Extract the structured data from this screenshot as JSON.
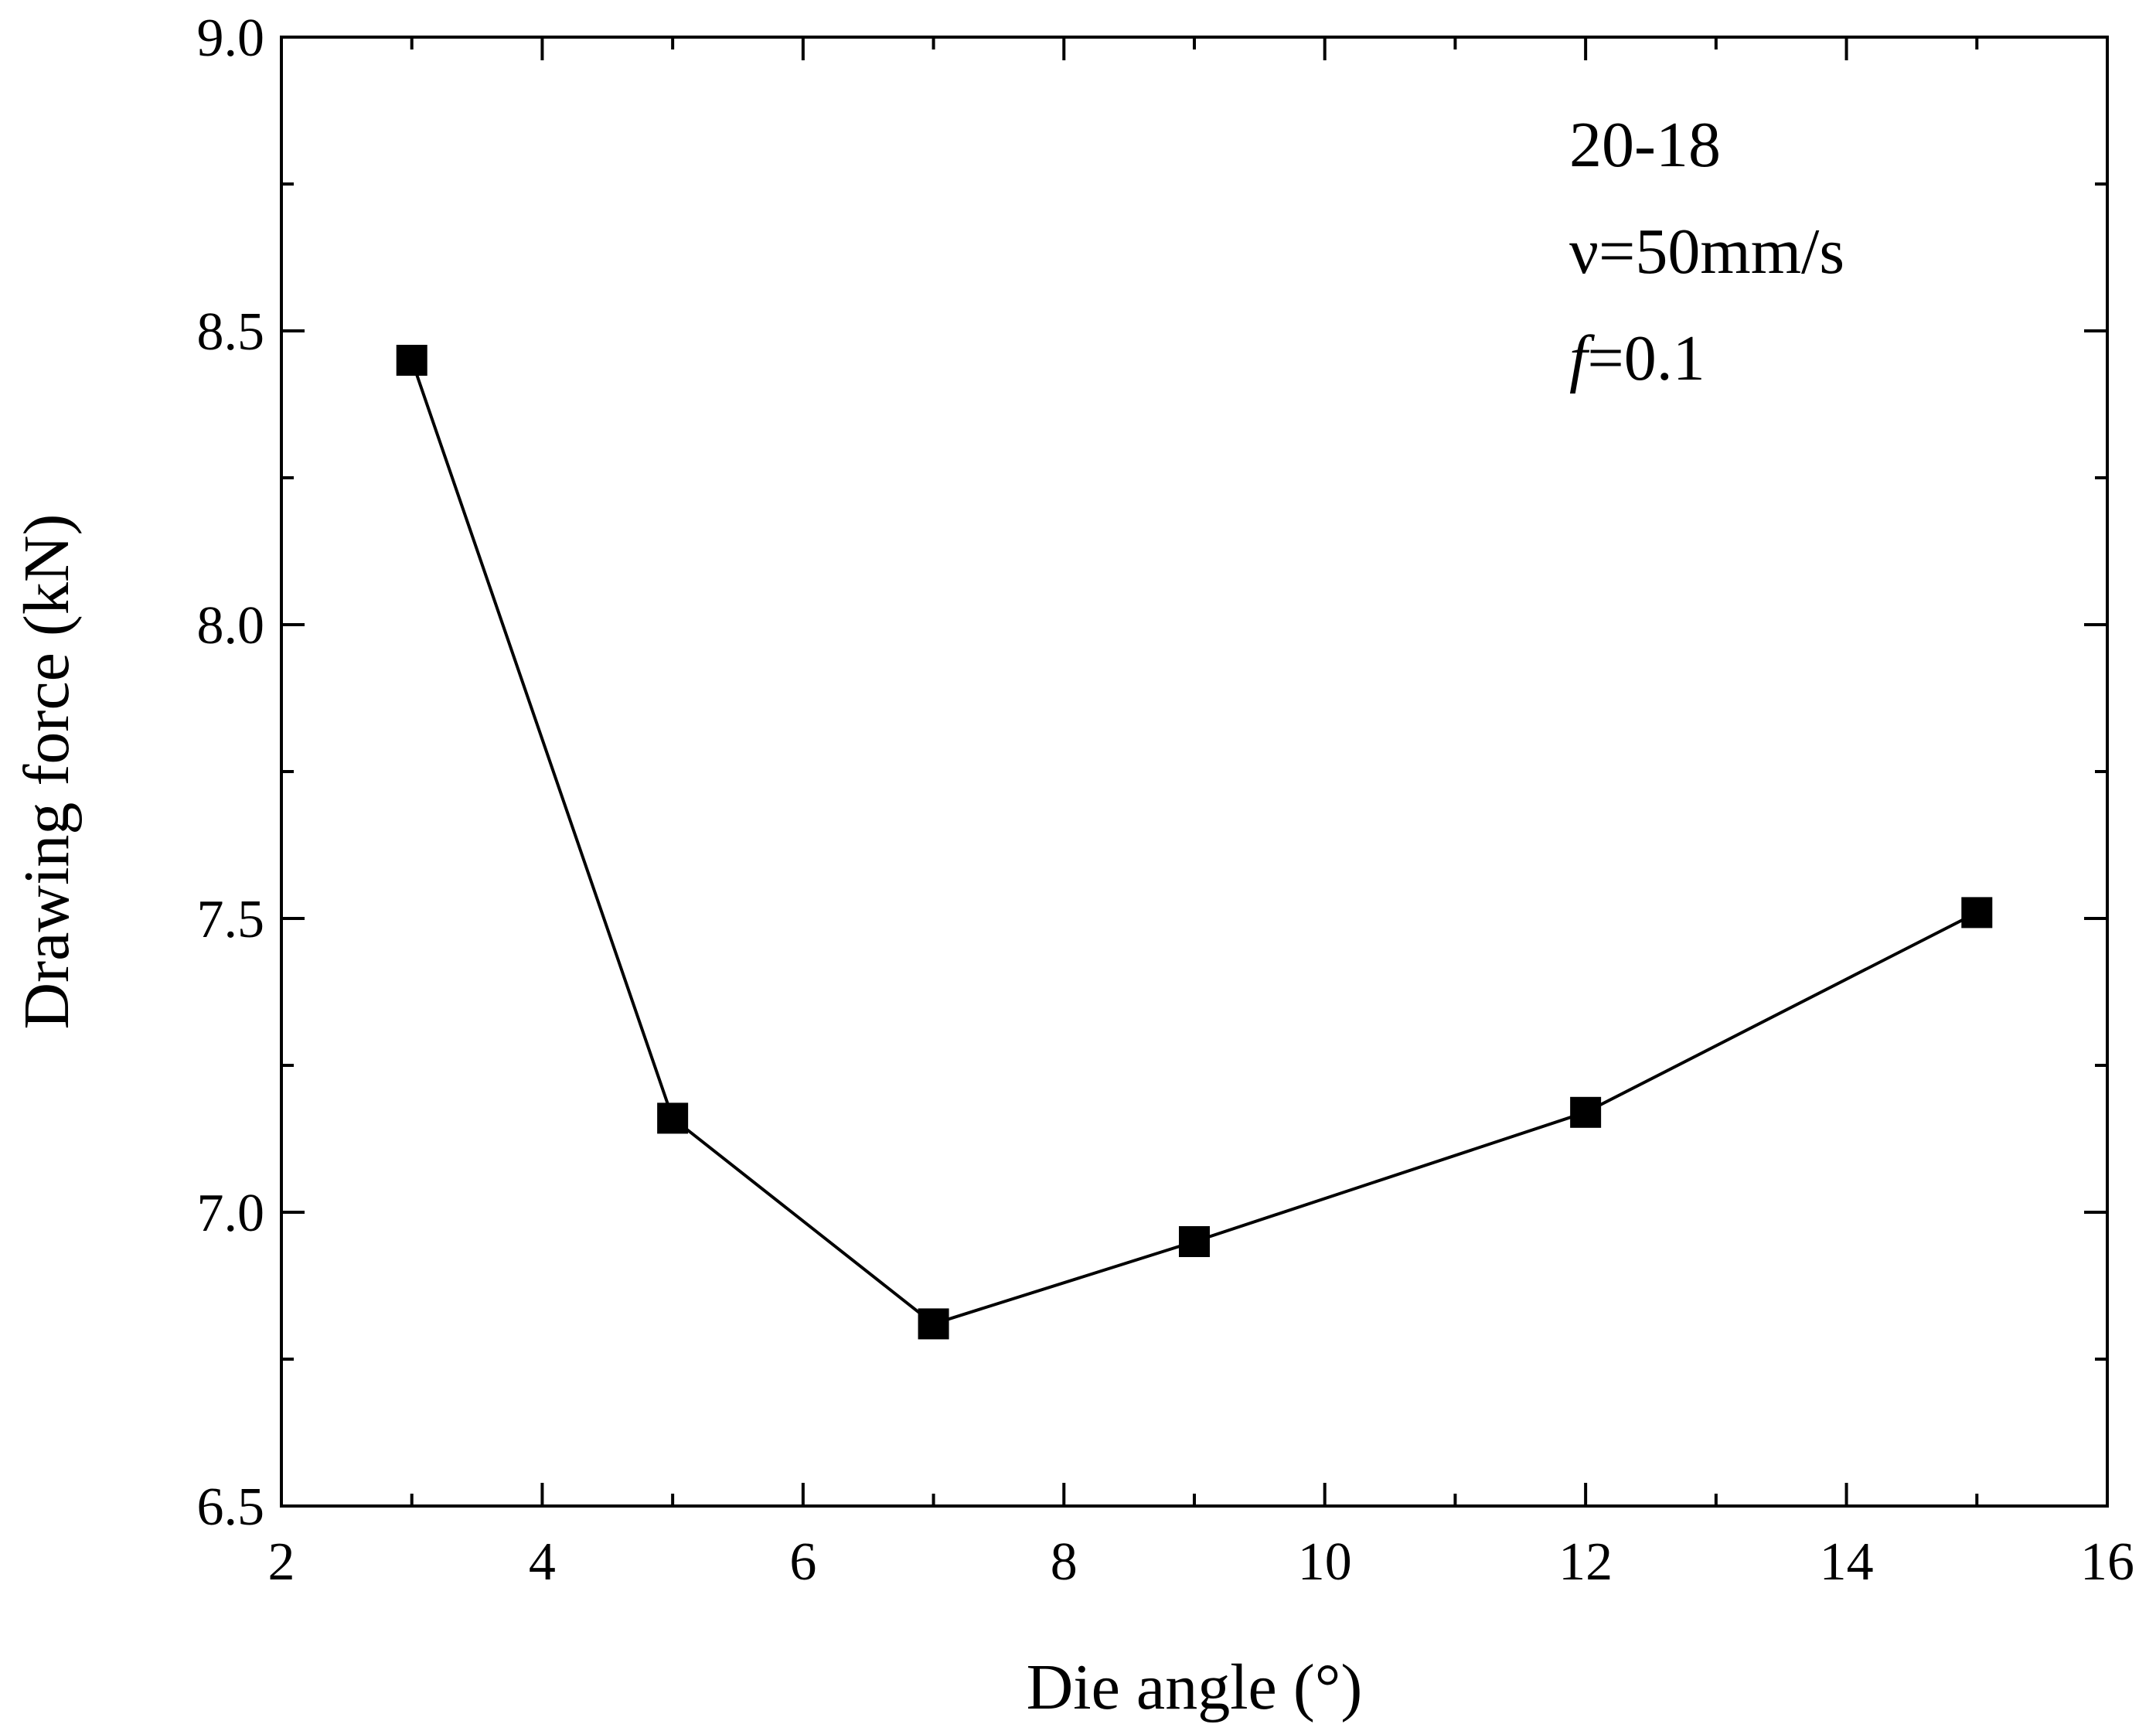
{
  "chart_data": {
    "type": "line",
    "xlabel": "Die angle (°)",
    "ylabel": "Drawing force (kN)",
    "xlim": [
      2,
      16
    ],
    "ylim": [
      6.5,
      9.0
    ],
    "x_ticks": [
      2,
      4,
      6,
      8,
      10,
      12,
      14,
      16
    ],
    "x_tick_labels": [
      "2",
      "4",
      "6",
      "8",
      "10",
      "12",
      "14",
      "16"
    ],
    "y_ticks": [
      6.5,
      7.0,
      7.5,
      8.0,
      8.5,
      9.0
    ],
    "y_tick_labels": [
      "6.5",
      "7.0",
      "7.5",
      "8.0",
      "8.5",
      "9.0"
    ],
    "grid": false,
    "series": [
      {
        "marker": "square",
        "color": "#000000",
        "points": [
          {
            "x": 3,
            "y": 8.45
          },
          {
            "x": 5,
            "y": 7.16
          },
          {
            "x": 7,
            "y": 6.81
          },
          {
            "x": 9,
            "y": 6.95
          },
          {
            "x": 12,
            "y": 7.17
          },
          {
            "x": 15,
            "y": 7.51
          }
        ]
      }
    ],
    "annotations": [
      {
        "lines": [
          "20-18",
          "ν=50mm/s",
          "f=0.1"
        ],
        "placement": "top-right"
      }
    ]
  }
}
